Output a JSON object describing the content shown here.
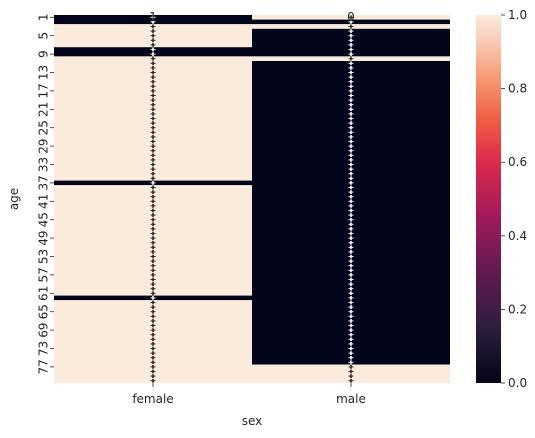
{
  "chart_data": {
    "type": "heatmap",
    "xlabel": "sex",
    "ylabel": "age",
    "x_categories": [
      "female",
      "male"
    ],
    "y_tick_labels": [
      "1",
      "5",
      "9",
      "13",
      "17",
      "21",
      "25",
      "29",
      "33",
      "37",
      "41",
      "45",
      "49",
      "53",
      "57",
      "61",
      "65",
      "69",
      "73",
      "77"
    ],
    "n_rows": 80,
    "colorbar": {
      "vmin": 0.0,
      "vmax": 1.0,
      "ticks": [
        "0.0",
        "0.2",
        "0.4",
        "0.6",
        "0.8",
        "1.0"
      ],
      "colormap": "rocket"
    },
    "values": {
      "female": {
        "default": 1,
        "zero_rows": [
          {
            "from": 0,
            "to": 1
          },
          {
            "from": 7,
            "to": 8
          },
          {
            "from": 36,
            "to": 36
          },
          {
            "from": 61,
            "to": 61
          }
        ]
      },
      "male": {
        "default": 0,
        "one_rows": [
          {
            "from": 0,
            "to": 0
          },
          {
            "from": 2,
            "to": 2
          },
          {
            "from": 9,
            "to": 9
          },
          {
            "from": 76,
            "to": 79
          }
        ]
      }
    },
    "annotations": {
      "female": {
        "text": "1",
        "zero_rows": [
          0,
          1,
          7,
          8,
          36,
          61
        ]
      },
      "male": {
        "text": "0",
        "one_rows": [
          0,
          2,
          9,
          76,
          77,
          78,
          79
        ]
      }
    }
  }
}
